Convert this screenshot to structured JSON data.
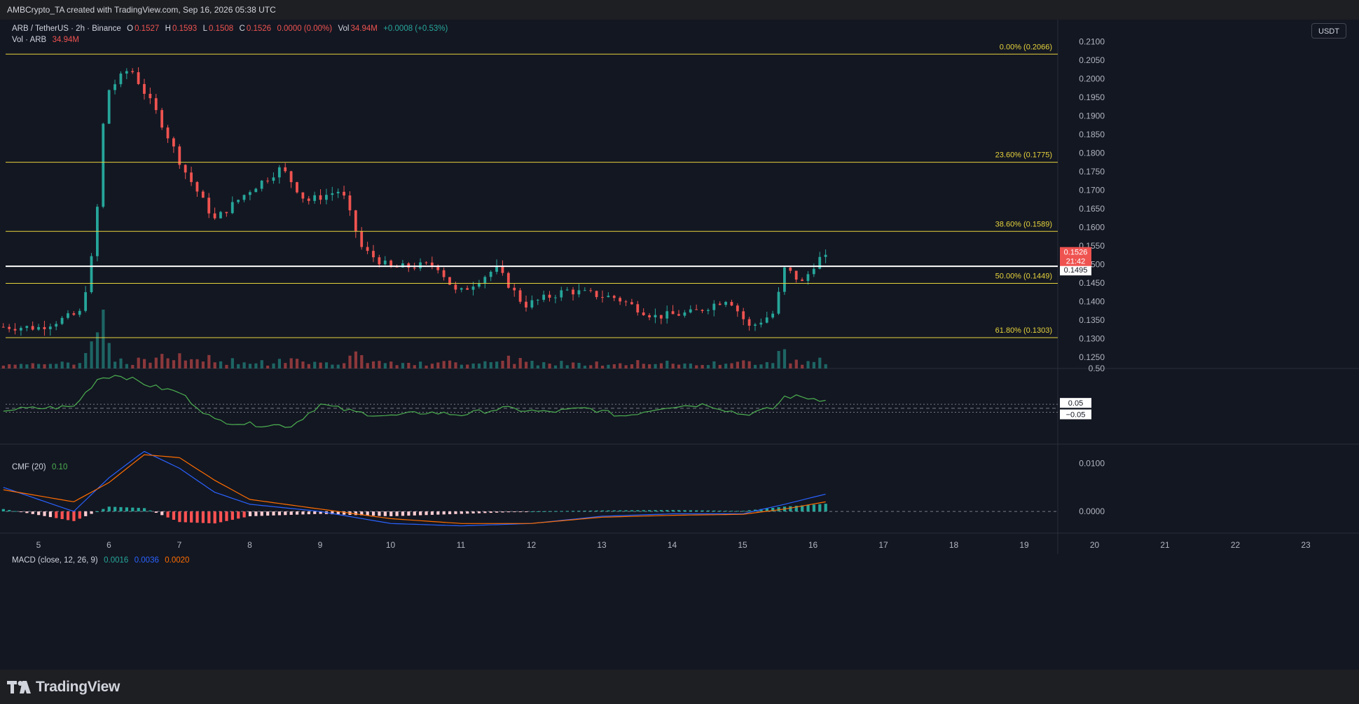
{
  "header": {
    "attribution": "AMBCrypto_TA created with TradingView.com, Sep 16, 2026 05:38 UTC"
  },
  "footer": {
    "logo_text": "TradingView"
  },
  "price_legend": {
    "symbol": "ARB / TetherUS · 2h · Binance",
    "o_label": "O",
    "o": "0.1527",
    "h_label": "H",
    "h": "0.1593",
    "l_label": "L",
    "l": "0.1508",
    "c_label": "C",
    "c": "0.1526",
    "change": "0.0000 (0.00%)",
    "vol_label": "Vol",
    "vol": "34.94M",
    "vol_change": "+0.0008 (+0.53%)"
  },
  "vol_legend": {
    "label": "Vol · ARB",
    "value": "34.94M"
  },
  "currency": "USDT",
  "cmf_legend": {
    "label": "CMF (20)",
    "value": "0.10"
  },
  "macd_legend": {
    "label": "MACD (close, 12, 26, 9)",
    "v1": "0.0016",
    "v2": "0.0036",
    "v3": "0.0020"
  },
  "price_badge": {
    "price": "0.1526",
    "countdown": "21:42"
  },
  "hline_badge": "0.1495",
  "colors": {
    "up": "#26a69a",
    "down": "#ef5350",
    "fib": "#e6d33c",
    "cmf": "#4caf50",
    "macd": "#2962ff",
    "signal": "#ff6d00",
    "bg": "#131722"
  },
  "chart_data": [
    {
      "type": "candlestick",
      "symbol": "ARB / TetherUS",
      "interval": "2h",
      "y_range": [
        0.122,
        0.2125
      ],
      "price_axis_ticks": [
        "0.2100",
        "0.2050",
        "0.2000",
        "0.1950",
        "0.1900",
        "0.1850",
        "0.1800",
        "0.1750",
        "0.1700",
        "0.1650",
        "0.1600",
        "0.1550",
        "0.1500",
        "0.1450",
        "0.1400",
        "0.1350",
        "0.1300",
        "0.1250"
      ],
      "x_axis_ticks": [
        "5",
        "6",
        "7",
        "8",
        "9",
        "10",
        "11",
        "12",
        "13",
        "14",
        "15",
        "16",
        "17",
        "18",
        "19",
        "20",
        "21",
        "22",
        "23"
      ],
      "fib_levels": [
        {
          "label": "0.00% (0.2066)",
          "price": 0.2066
        },
        {
          "label": "23.60% (0.1775)",
          "price": 0.1775
        },
        {
          "label": "38.60% (0.1589)",
          "price": 0.1589
        },
        {
          "label": "50.00% (0.1449)",
          "price": 0.1449
        },
        {
          "label": "61.80% (0.1303)",
          "price": 0.1303
        }
      ],
      "horizontal_line": 0.1495,
      "current_price": 0.1526,
      "key_closes": [
        {
          "day": 4.55,
          "close": 0.1332
        },
        {
          "day": 5.0,
          "close": 0.133
        },
        {
          "day": 5.6,
          "close": 0.137
        },
        {
          "day": 5.8,
          "close": 0.156
        },
        {
          "day": 5.95,
          "close": 0.196
        },
        {
          "day": 6.3,
          "close": 0.203
        },
        {
          "day": 6.7,
          "close": 0.19
        },
        {
          "day": 7.05,
          "close": 0.176
        },
        {
          "day": 7.5,
          "close": 0.162
        },
        {
          "day": 8.0,
          "close": 0.17
        },
        {
          "day": 8.45,
          "close": 0.176
        },
        {
          "day": 8.8,
          "close": 0.167
        },
        {
          "day": 9.3,
          "close": 0.17
        },
        {
          "day": 9.6,
          "close": 0.154
        },
        {
          "day": 10.0,
          "close": 0.149
        },
        {
          "day": 10.65,
          "close": 0.15
        },
        {
          "day": 10.95,
          "close": 0.142
        },
        {
          "day": 11.5,
          "close": 0.149
        },
        {
          "day": 11.9,
          "close": 0.139
        },
        {
          "day": 12.5,
          "close": 0.143
        },
        {
          "day": 13.2,
          "close": 0.141
        },
        {
          "day": 13.75,
          "close": 0.136
        },
        {
          "day": 14.3,
          "close": 0.137
        },
        {
          "day": 14.8,
          "close": 0.141
        },
        {
          "day": 15.1,
          "close": 0.133
        },
        {
          "day": 15.45,
          "close": 0.137
        },
        {
          "day": 15.6,
          "close": 0.149
        },
        {
          "day": 15.85,
          "close": 0.145
        },
        {
          "day": 16.05,
          "close": 0.151
        },
        {
          "day": 16.18,
          "close": 0.1526
        }
      ]
    },
    {
      "type": "line",
      "name": "CMF (20)",
      "axis_ticks": [
        "0.50"
      ],
      "y_range": [
        -0.45,
        0.5
      ],
      "guide_levels": [
        {
          "label": "0.05",
          "value": 0.05
        },
        {
          "label": "−0.05",
          "value": -0.05
        }
      ],
      "key_values": [
        {
          "day": 4.5,
          "value": -0.02
        },
        {
          "day": 5.0,
          "value": 0.0
        },
        {
          "day": 5.5,
          "value": 0.02
        },
        {
          "day": 5.85,
          "value": 0.38
        },
        {
          "day": 6.15,
          "value": 0.42
        },
        {
          "day": 6.6,
          "value": 0.28
        },
        {
          "day": 7.0,
          "value": 0.2
        },
        {
          "day": 7.5,
          "value": -0.15
        },
        {
          "day": 8.0,
          "value": -0.2
        },
        {
          "day": 8.6,
          "value": -0.22
        },
        {
          "day": 9.0,
          "value": 0.05
        },
        {
          "day": 9.5,
          "value": -0.05
        },
        {
          "day": 10.0,
          "value": -0.1
        },
        {
          "day": 10.5,
          "value": -0.05
        },
        {
          "day": 11.0,
          "value": -0.08
        },
        {
          "day": 11.6,
          "value": 0.0
        },
        {
          "day": 12.2,
          "value": -0.05
        },
        {
          "day": 12.8,
          "value": 0.0
        },
        {
          "day": 13.3,
          "value": -0.1
        },
        {
          "day": 13.9,
          "value": 0.02
        },
        {
          "day": 14.5,
          "value": 0.05
        },
        {
          "day": 15.0,
          "value": -0.08
        },
        {
          "day": 15.45,
          "value": 0.0
        },
        {
          "day": 15.6,
          "value": 0.15
        },
        {
          "day": 15.85,
          "value": 0.14
        },
        {
          "day": 16.05,
          "value": 0.12
        },
        {
          "day": 16.18,
          "value": 0.1
        }
      ]
    },
    {
      "type": "line",
      "name": "MACD (close, 12, 26, 9)",
      "axis_ticks": [
        "0.0100",
        "0.0000"
      ],
      "y_range": [
        -0.0045,
        0.014
      ],
      "macd_key_values": [
        {
          "day": 4.5,
          "value": 0.005
        },
        {
          "day": 5.5,
          "value": 0.0
        },
        {
          "day": 6.0,
          "value": 0.007
        },
        {
          "day": 6.5,
          "value": 0.0125
        },
        {
          "day": 7.0,
          "value": 0.009
        },
        {
          "day": 7.5,
          "value": 0.004
        },
        {
          "day": 8.0,
          "value": 0.0015
        },
        {
          "day": 9.0,
          "value": 0.0
        },
        {
          "day": 10.0,
          "value": -0.0025
        },
        {
          "day": 11.0,
          "value": -0.003
        },
        {
          "day": 12.0,
          "value": -0.0025
        },
        {
          "day": 13.0,
          "value": -0.001
        },
        {
          "day": 14.0,
          "value": -0.0005
        },
        {
          "day": 15.0,
          "value": -0.0005
        },
        {
          "day": 15.6,
          "value": 0.0015
        },
        {
          "day": 16.18,
          "value": 0.0036
        }
      ],
      "signal_key_values": [
        {
          "day": 4.5,
          "value": 0.0045
        },
        {
          "day": 5.5,
          "value": 0.002
        },
        {
          "day": 6.0,
          "value": 0.006
        },
        {
          "day": 6.5,
          "value": 0.0118
        },
        {
          "day": 7.0,
          "value": 0.0112
        },
        {
          "day": 7.5,
          "value": 0.0065
        },
        {
          "day": 8.0,
          "value": 0.0025
        },
        {
          "day": 9.0,
          "value": 0.0005
        },
        {
          "day": 10.0,
          "value": -0.0015
        },
        {
          "day": 11.0,
          "value": -0.0025
        },
        {
          "day": 12.0,
          "value": -0.0025
        },
        {
          "day": 13.0,
          "value": -0.0012
        },
        {
          "day": 14.0,
          "value": -0.0008
        },
        {
          "day": 15.0,
          "value": -0.0006
        },
        {
          "day": 15.6,
          "value": 0.0005
        },
        {
          "day": 16.18,
          "value": 0.002
        }
      ]
    }
  ]
}
